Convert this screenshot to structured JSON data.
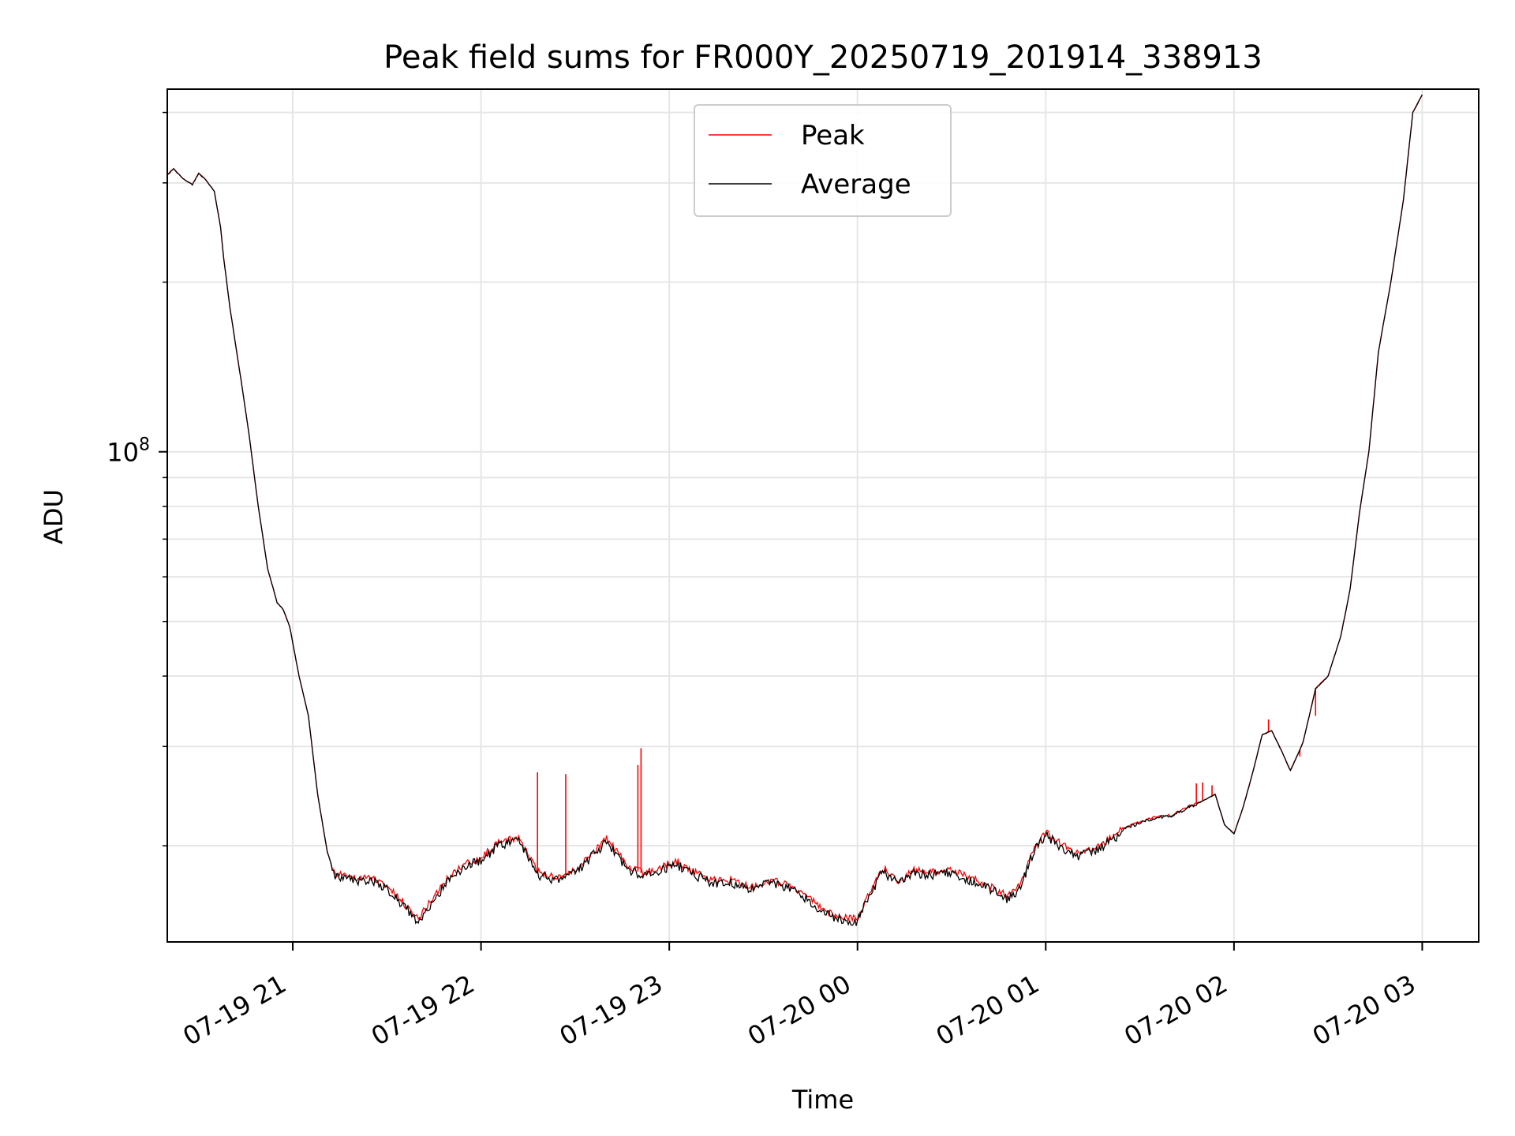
{
  "chart_data": {
    "type": "line",
    "title": "Peak field sums for FR000Y_20250719_201914_338913",
    "xlabel": "Time",
    "ylabel": "ADU",
    "x_scale": "time",
    "y_scale": "log",
    "ylim": [
      13500000,
      440000000
    ],
    "xlim": [
      "2025-07-19 20:20",
      "2025-07-20 03:18"
    ],
    "x_ticks": [
      "07-19 21",
      "07-19 22",
      "07-19 23",
      "07-20 00",
      "07-20 01",
      "07-20 02",
      "07-20 03"
    ],
    "y_tick_labels": [
      {
        "base": "10",
        "exponent": "8"
      }
    ],
    "grid": true,
    "legend": {
      "position": "upper center",
      "entries": [
        "Peak",
        "Average"
      ]
    },
    "colors": {
      "Peak": "#ff0000",
      "Average": "#000000"
    },
    "series": [
      {
        "name": "Average",
        "x": [
          "2025-07-19 20:20",
          "2025-07-19 20:22",
          "2025-07-19 20:25",
          "2025-07-19 20:28",
          "2025-07-19 20:30",
          "2025-07-19 20:32",
          "2025-07-19 20:35",
          "2025-07-19 20:37",
          "2025-07-19 20:38",
          "2025-07-19 20:40",
          "2025-07-19 20:43",
          "2025-07-19 20:46",
          "2025-07-19 20:49",
          "2025-07-19 20:52",
          "2025-07-19 20:55",
          "2025-07-19 20:57",
          "2025-07-19 20:59",
          "2025-07-19 21:02",
          "2025-07-19 21:05",
          "2025-07-19 21:08",
          "2025-07-19 21:11",
          "2025-07-19 21:13",
          "2025-07-19 21:14",
          "2025-07-19 21:16",
          "2025-07-19 21:20",
          "2025-07-19 21:25",
          "2025-07-19 21:30",
          "2025-07-19 21:35",
          "2025-07-19 21:40",
          "2025-07-19 21:45",
          "2025-07-19 21:50",
          "2025-07-19 21:55",
          "2025-07-19 22:00",
          "2025-07-19 22:06",
          "2025-07-19 22:12",
          "2025-07-19 22:18",
          "2025-07-19 22:24",
          "2025-07-19 22:30",
          "2025-07-19 22:33",
          "2025-07-19 22:40",
          "2025-07-19 22:47",
          "2025-07-19 22:52",
          "2025-07-19 22:57",
          "2025-07-19 23:02",
          "2025-07-19 23:08",
          "2025-07-19 23:14",
          "2025-07-19 23:20",
          "2025-07-19 23:26",
          "2025-07-19 23:32",
          "2025-07-19 23:38",
          "2025-07-19 23:44",
          "2025-07-19 23:50",
          "2025-07-19 23:55",
          "2025-07-20 00:00",
          "2025-07-20 00:04",
          "2025-07-20 00:08",
          "2025-07-20 00:13",
          "2025-07-20 00:18",
          "2025-07-20 00:24",
          "2025-07-20 00:30",
          "2025-07-20 00:36",
          "2025-07-20 00:42",
          "2025-07-20 00:48",
          "2025-07-20 00:52",
          "2025-07-20 00:56",
          "2025-07-20 01:00",
          "2025-07-20 01:05",
          "2025-07-20 01:10",
          "2025-07-20 01:15",
          "2025-07-20 01:20",
          "2025-07-20 01:25",
          "2025-07-20 01:30",
          "2025-07-20 01:35",
          "2025-07-20 01:40",
          "2025-07-20 01:45",
          "2025-07-20 01:50",
          "2025-07-20 01:54",
          "2025-07-20 01:57",
          "2025-07-20 02:00",
          "2025-07-20 02:03",
          "2025-07-20 02:06",
          "2025-07-20 02:09",
          "2025-07-20 02:12",
          "2025-07-20 02:15",
          "2025-07-20 02:18",
          "2025-07-20 02:22",
          "2025-07-20 02:26",
          "2025-07-20 02:30",
          "2025-07-20 02:34",
          "2025-07-20 02:37",
          "2025-07-20 02:40",
          "2025-07-20 02:43",
          "2025-07-20 02:46",
          "2025-07-20 02:50",
          "2025-07-20 02:54",
          "2025-07-20 02:57",
          "2025-07-20 03:00"
        ],
        "values": [
          310000000,
          318000000,
          305000000,
          298000000,
          312000000,
          305000000,
          290000000,
          250000000,
          220000000,
          180000000,
          140000000,
          108000000,
          80000000,
          62000000,
          54000000,
          52500000,
          49000000,
          40000000,
          34000000,
          24500000,
          19500000,
          18000000,
          17800000,
          17700000,
          17400000,
          17500000,
          16900000,
          15800000,
          14800000,
          16200000,
          17600000,
          18500000,
          19000000,
          20200000,
          20600000,
          17900000,
          17500000,
          18000000,
          18700000,
          20500000,
          18300000,
          17800000,
          18200000,
          18700000,
          17900000,
          17300000,
          17300000,
          16800000,
          17300000,
          17000000,
          16200000,
          15200000,
          14900000,
          14800000,
          16500000,
          18200000,
          17200000,
          18000000,
          17900000,
          18100000,
          17500000,
          16900000,
          16200000,
          17000000,
          19600000,
          21100000,
          20000000,
          19300000,
          19600000,
          20400000,
          21500000,
          22000000,
          22500000,
          22600000,
          23400000,
          24000000,
          24700000,
          21800000,
          21000000,
          23500000,
          27000000,
          31500000,
          32000000,
          29600000,
          27200000,
          30500000,
          38000000,
          40000000,
          47000000,
          57000000,
          78000000,
          100000000,
          150000000,
          200000000,
          280000000,
          400000000,
          430000000
        ]
      },
      {
        "name": "Peak",
        "x": [
          "2025-07-19 20:20",
          "2025-07-19 20:22",
          "2025-07-19 20:25",
          "2025-07-19 20:28",
          "2025-07-19 20:30",
          "2025-07-19 20:32",
          "2025-07-19 20:35",
          "2025-07-19 20:37",
          "2025-07-19 20:38",
          "2025-07-19 20:40",
          "2025-07-19 20:43",
          "2025-07-19 20:46",
          "2025-07-19 20:49",
          "2025-07-19 20:52",
          "2025-07-19 20:55",
          "2025-07-19 20:57",
          "2025-07-19 20:59",
          "2025-07-19 21:02",
          "2025-07-19 21:05",
          "2025-07-19 21:08",
          "2025-07-19 21:11",
          "2025-07-19 21:13",
          "2025-07-19 21:14",
          "2025-07-19 21:16",
          "2025-07-19 21:20",
          "2025-07-19 21:25",
          "2025-07-19 21:30",
          "2025-07-19 21:35",
          "2025-07-19 21:40",
          "2025-07-19 21:45",
          "2025-07-19 21:50",
          "2025-07-19 21:55",
          "2025-07-19 22:00",
          "2025-07-19 22:06",
          "2025-07-19 22:12",
          "2025-07-19 22:18",
          "2025-07-19 22:24",
          "2025-07-19 22:30",
          "2025-07-19 22:33",
          "2025-07-19 22:40",
          "2025-07-19 22:47",
          "2025-07-19 22:52",
          "2025-07-19 22:57",
          "2025-07-19 23:02",
          "2025-07-19 23:08",
          "2025-07-19 23:14",
          "2025-07-19 23:20",
          "2025-07-19 23:26",
          "2025-07-19 23:32",
          "2025-07-19 23:38",
          "2025-07-19 23:44",
          "2025-07-19 23:50",
          "2025-07-19 23:55",
          "2025-07-20 00:00",
          "2025-07-20 00:04",
          "2025-07-20 00:08",
          "2025-07-20 00:13",
          "2025-07-20 00:18",
          "2025-07-20 00:24",
          "2025-07-20 00:30",
          "2025-07-20 00:36",
          "2025-07-20 00:42",
          "2025-07-20 00:48",
          "2025-07-20 00:52",
          "2025-07-20 00:56",
          "2025-07-20 01:00",
          "2025-07-20 01:05",
          "2025-07-20 01:10",
          "2025-07-20 01:15",
          "2025-07-20 01:20",
          "2025-07-20 01:25",
          "2025-07-20 01:30",
          "2025-07-20 01:35",
          "2025-07-20 01:40",
          "2025-07-20 01:45",
          "2025-07-20 01:50",
          "2025-07-20 01:54",
          "2025-07-20 01:57",
          "2025-07-20 02:00",
          "2025-07-20 02:03",
          "2025-07-20 02:06",
          "2025-07-20 02:09",
          "2025-07-20 02:12",
          "2025-07-20 02:15",
          "2025-07-20 02:18",
          "2025-07-20 02:22",
          "2025-07-20 02:26",
          "2025-07-20 02:30",
          "2025-07-20 02:34",
          "2025-07-20 02:37",
          "2025-07-20 02:40",
          "2025-07-20 02:43",
          "2025-07-20 02:46",
          "2025-07-20 02:50",
          "2025-07-20 02:54",
          "2025-07-20 02:57",
          "2025-07-20 03:00"
        ],
        "values": [
          310000000,
          318000000,
          305000000,
          298000000,
          312000000,
          305000000,
          290000000,
          250000000,
          220000000,
          180000000,
          140000000,
          108000000,
          80000000,
          62000000,
          54000000,
          52500000,
          49000000,
          40000000,
          34000000,
          24500000,
          19500000,
          18000000,
          17800000,
          17700000,
          17400000,
          17500000,
          16900000,
          15800000,
          14800000,
          16200000,
          17600000,
          18500000,
          19000000,
          20200000,
          20600000,
          17900000,
          17500000,
          18000000,
          18700000,
          20500000,
          18300000,
          17800000,
          18200000,
          18700000,
          17900000,
          17300000,
          17300000,
          16800000,
          17300000,
          17000000,
          16200000,
          15200000,
          14900000,
          14800000,
          16500000,
          18200000,
          17200000,
          18000000,
          17900000,
          18100000,
          17500000,
          16900000,
          16200000,
          17000000,
          19600000,
          21100000,
          20000000,
          19300000,
          19600000,
          20400000,
          21500000,
          22000000,
          22500000,
          22600000,
          23400000,
          24000000,
          24700000,
          21800000,
          21000000,
          23500000,
          27000000,
          31500000,
          32000000,
          29600000,
          27200000,
          30500000,
          38000000,
          40000000,
          47000000,
          57000000,
          78000000,
          100000000,
          150000000,
          200000000,
          280000000,
          400000000,
          430000000
        ],
        "spikes": [
          {
            "x": "2025-07-19 22:18",
            "value": 27000000
          },
          {
            "x": "2025-07-19 22:27",
            "value": 26800000
          },
          {
            "x": "2025-07-19 22:50",
            "value": 27800000
          },
          {
            "x": "2025-07-19 22:51",
            "value": 29800000
          },
          {
            "x": "2025-07-20 01:48",
            "value": 25800000
          },
          {
            "x": "2025-07-20 01:50",
            "value": 25900000
          },
          {
            "x": "2025-07-20 01:53",
            "value": 25600000
          },
          {
            "x": "2025-07-20 02:11",
            "value": 33500000
          },
          {
            "x": "2025-07-20 02:21",
            "value": 28800000
          },
          {
            "x": "2025-07-20 02:26",
            "value": 34000000
          }
        ]
      }
    ]
  }
}
